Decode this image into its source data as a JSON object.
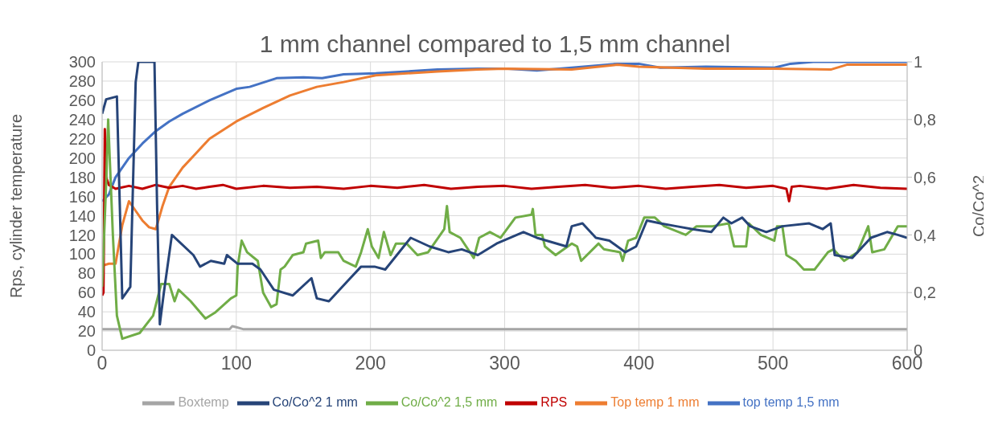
{
  "chart_data": {
    "type": "line",
    "title": "1 mm channel compared to 1,5 mm channel",
    "ylabel": "Rps, cylinder temperature",
    "y2label": "Co/Co^2",
    "xlim": [
      0,
      600
    ],
    "xticks": [
      0,
      100,
      200,
      300,
      400,
      500,
      600
    ],
    "ylim": [
      0,
      300
    ],
    "yticks": [
      0,
      20,
      40,
      60,
      80,
      100,
      120,
      140,
      160,
      180,
      200,
      220,
      240,
      260,
      280,
      300
    ],
    "y2lim": [
      0,
      1
    ],
    "y2ticks": [
      0,
      {
        "value": 0.2,
        "label": "0,2"
      },
      {
        "value": 0.4,
        "label": "0,4"
      },
      {
        "value": 0.6,
        "label": "0,6"
      },
      {
        "value": 0.8,
        "label": "0,8"
      },
      1
    ],
    "grid": true,
    "legend": "bottom",
    "series": [
      {
        "name": "top temp 1,5 mm",
        "color": "#4472c4",
        "x": [
          0,
          5,
          10,
          20,
          30,
          40,
          50,
          60,
          80,
          100,
          110,
          130,
          150,
          164,
          180,
          204,
          250,
          280,
          300,
          324,
          350,
          384,
          400,
          416,
          450,
          501,
          513,
          530,
          600
        ],
        "values": [
          155,
          162,
          180,
          200,
          215,
          228,
          238,
          246,
          260,
          272,
          274,
          283,
          284,
          283,
          287,
          288,
          292,
          293,
          293,
          291,
          294,
          298,
          298,
          294,
          295,
          294,
          298,
          300,
          300
        ]
      },
      {
        "name": "Top temp 1 mm",
        "color": "#ed7d31",
        "x": [
          0,
          5,
          10,
          15,
          20,
          25,
          30,
          35,
          40,
          45,
          50,
          60,
          70,
          80,
          100,
          120,
          140,
          160,
          180,
          204,
          250,
          280,
          300,
          350,
          384,
          400,
          450,
          500,
          543,
          555,
          600
        ],
        "values": [
          88,
          90,
          90,
          130,
          155,
          145,
          135,
          128,
          126,
          150,
          170,
          190,
          205,
          220,
          238,
          252,
          265,
          274,
          279,
          286,
          290,
          292,
          293,
          292,
          297,
          295,
          293,
          293,
          292,
          297,
          297
        ]
      },
      {
        "name": "Boxtemp",
        "color": "#a5a5a5",
        "x": [
          0,
          95,
          97,
          100,
          105,
          600
        ],
        "values": [
          22,
          22,
          25,
          24,
          22,
          22
        ]
      },
      {
        "name": "RPS",
        "color": "#c00000",
        "x": [
          0,
          1,
          2,
          3,
          5,
          10,
          20,
          30,
          40,
          50,
          60,
          70,
          80,
          90,
          100,
          120,
          140,
          160,
          180,
          200,
          220,
          240,
          260,
          280,
          300,
          320,
          340,
          360,
          380,
          400,
          420,
          440,
          460,
          480,
          500,
          510,
          512,
          514,
          520,
          540,
          560,
          580,
          600
        ],
        "values": [
          57,
          60,
          230,
          180,
          172,
          168,
          171,
          168,
          172,
          169,
          171,
          168,
          170,
          172,
          168,
          171,
          169,
          170,
          168,
          171,
          169,
          172,
          168,
          170,
          171,
          168,
          170,
          172,
          169,
          171,
          168,
          170,
          172,
          169,
          171,
          168,
          155,
          170,
          171,
          168,
          172,
          169,
          168
        ]
      },
      {
        "name": "Co/Co^2 1,5 mm",
        "color": "#70ad47",
        "axis": "y2",
        "x": [
          0,
          3,
          4.5,
          8,
          11,
          15,
          28,
          38,
          44,
          50,
          54,
          57,
          66,
          77,
          84,
          96,
          100,
          101,
          104,
          108,
          116,
          120,
          126,
          130,
          133,
          136,
          142,
          150,
          152,
          161,
          163,
          166,
          176,
          180,
          189,
          193,
          198,
          201,
          206,
          210,
          215,
          219,
          227,
          235,
          243,
          255,
          257,
          259,
          267,
          277,
          281,
          289,
          297,
          308,
          320,
          321,
          323,
          328,
          330,
          338,
          350,
          354,
          357,
          370,
          374,
          386,
          388,
          392,
          398,
          404,
          412,
          419,
          435,
          443,
          455,
          467,
          471,
          480,
          482,
          491,
          501,
          503,
          507,
          510,
          517,
          523,
          531,
          541,
          545,
          553,
          563,
          571,
          574,
          583,
          593,
          600
        ],
        "values": [
          0.22,
          0.58,
          0.8,
          0.4,
          0.12,
          0.04,
          0.06,
          0.12,
          0.23,
          0.23,
          0.17,
          0.21,
          0.17,
          0.11,
          0.13,
          0.18,
          0.19,
          0.29,
          0.38,
          0.34,
          0.31,
          0.2,
          0.15,
          0.16,
          0.28,
          0.29,
          0.33,
          0.34,
          0.37,
          0.38,
          0.32,
          0.34,
          0.34,
          0.31,
          0.29,
          0.34,
          0.42,
          0.36,
          0.32,
          0.41,
          0.33,
          0.37,
          0.37,
          0.33,
          0.34,
          0.42,
          0.5,
          0.41,
          0.39,
          0.32,
          0.39,
          0.41,
          0.39,
          0.46,
          0.47,
          0.49,
          0.4,
          0.4,
          0.36,
          0.33,
          0.37,
          0.36,
          0.31,
          0.37,
          0.35,
          0.34,
          0.31,
          0.38,
          0.39,
          0.46,
          0.46,
          0.43,
          0.4,
          0.43,
          0.43,
          0.44,
          0.36,
          0.36,
          0.44,
          0.4,
          0.38,
          0.43,
          0.43,
          0.33,
          0.31,
          0.28,
          0.28,
          0.34,
          0.35,
          0.31,
          0.34,
          0.43,
          0.34,
          0.35,
          0.43,
          0.43
        ]
      },
      {
        "name": "Co/Co^2 1 mm",
        "color": "#264478",
        "axis": "y2",
        "x": [
          0,
          3,
          11,
          15,
          21,
          25,
          27,
          39,
          41,
          43,
          46,
          52,
          68,
          73,
          81,
          91,
          93,
          101,
          112,
          118,
          128,
          142,
          156,
          160,
          169,
          183,
          193,
          203,
          211,
          230,
          244,
          258,
          268,
          280,
          294,
          314,
          324,
          346,
          350,
          358,
          368,
          378,
          390,
          398,
          406,
          416,
          428,
          440,
          454,
          463,
          469,
          477,
          483,
          495,
          507,
          527,
          537,
          543,
          546,
          559,
          573,
          585,
          593,
          600
        ],
        "values": [
          0.82,
          0.87,
          0.88,
          0.18,
          0.22,
          0.93,
          1,
          1,
          0.49,
          0.09,
          0.2,
          0.4,
          0.33,
          0.29,
          0.31,
          0.3,
          0.33,
          0.3,
          0.3,
          0.28,
          0.21,
          0.19,
          0.25,
          0.18,
          0.17,
          0.24,
          0.29,
          0.29,
          0.28,
          0.39,
          0.36,
          0.34,
          0.35,
          0.33,
          0.37,
          0.41,
          0.39,
          0.36,
          0.43,
          0.44,
          0.39,
          0.38,
          0.34,
          0.36,
          0.45,
          0.44,
          0.43,
          0.42,
          0.41,
          0.46,
          0.44,
          0.46,
          0.43,
          0.41,
          0.43,
          0.44,
          0.42,
          0.44,
          0.33,
          0.32,
          0.39,
          0.41,
          0.4,
          0.39
        ]
      }
    ]
  }
}
